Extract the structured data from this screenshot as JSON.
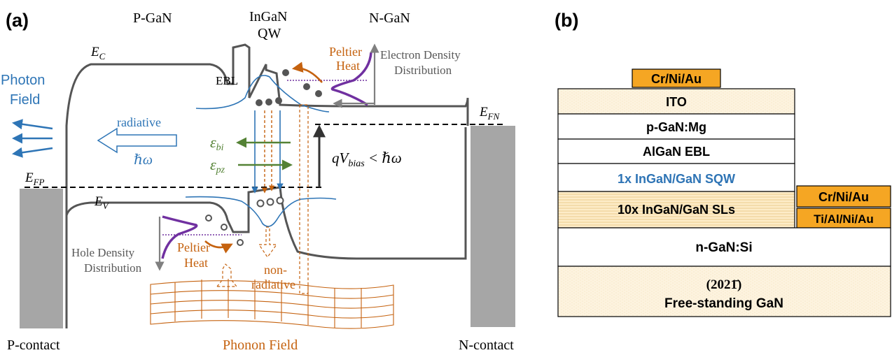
{
  "panel_a": {
    "label": "(a)",
    "region_p": "P-GaN",
    "region_qw_line1": "InGaN",
    "region_qw_line2": "QW",
    "region_n": "N-GaN",
    "ec": "E",
    "ec_sub": "C",
    "ev": "E",
    "ev_sub": "V",
    "efp": "E",
    "efp_sub": "FP",
    "efn": "E",
    "efn_sub": "FN",
    "ebl": "EBL",
    "photon_line1": "Photon",
    "photon_line2": "Field",
    "radiative": "radiative",
    "hbar_omega": "ℏω",
    "eps": "ε",
    "eps_bi_sub": "bi",
    "eps_pz_sub": "pz",
    "qv_q": "qV",
    "qv_sub": "bias",
    "qv_rest": " < ℏω",
    "peltier_line1": "Peltier",
    "peltier_line2": "Heat",
    "electron_line1": "Electron Density",
    "electron_line2": "Distribution",
    "hole_line1": "Hole Density",
    "hole_line2": "Distribution",
    "nonrad_line1": "non-",
    "nonrad_line2": "radiative",
    "phonon": "Phonon Field",
    "p_contact": "P-contact",
    "n_contact": "N-contact"
  },
  "panel_b": {
    "label": "(b)",
    "layers": {
      "top_contact": "Cr/Ni/Au",
      "ito": "ITO",
      "pgan": "p-GaN:Mg",
      "ebl": "AlGaN EBL",
      "sqw": "1x InGaN/GaN SQW",
      "sls": "10x InGaN/GaN SLs",
      "ngan": "n-GaN:Si",
      "orientation": "(2021̄)",
      "substrate": "Free-standing GaN"
    },
    "n_contact_top": "Cr/Ni/Au",
    "n_contact_bottom": "Ti/Al/Ni/Au",
    "colors": {
      "contact": "#f5a623",
      "sqw_text": "#2e74b5",
      "ito_fill": "#fdf1d8",
      "sls_fill": "#fde9c0"
    }
  },
  "colors": {
    "band": "#555555",
    "blue": "#2e75b6",
    "orange": "#c5620f",
    "green": "#548235",
    "purple": "#7030a0",
    "contact_gray": "#a6a6a6",
    "dot": "#555555"
  }
}
